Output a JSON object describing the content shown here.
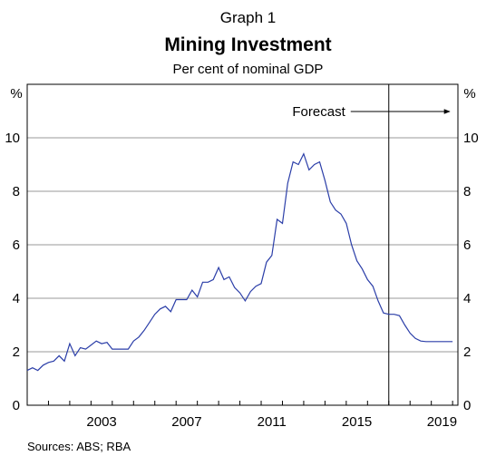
{
  "header": {
    "graph_number": "Graph 1",
    "title": "Mining Investment",
    "subtitle": "Per cent of nominal GDP"
  },
  "footer": {
    "sources": "Sources:   ABS; RBA"
  },
  "colors": {
    "line": "#2b3ea8",
    "grid": "#9a9a9a",
    "axis": "#000000"
  },
  "chart_data": {
    "type": "line",
    "title": "Mining Investment",
    "subtitle": "Per cent of nominal GDP",
    "y_unit_left": "%",
    "y_unit_right": "%",
    "ylim": [
      0,
      12
    ],
    "yticks": [
      0,
      2,
      4,
      6,
      8,
      10
    ],
    "xlim": [
      2000.0,
      2020.25
    ],
    "xticks": [
      2003,
      2007,
      2011,
      2015,
      2019
    ],
    "grid": "horizontal",
    "annotation": {
      "label": "Forecast",
      "x": 2017.0,
      "arrow": "right"
    },
    "series": [
      {
        "x": [
          2000.0,
          2000.25,
          2000.5,
          2000.75,
          2001.0,
          2001.25,
          2001.5,
          2001.75,
          2002.0,
          2002.25,
          2002.5,
          2002.75,
          2003.0,
          2003.25,
          2003.5,
          2003.75,
          2004.0,
          2004.25,
          2004.5,
          2004.75,
          2005.0,
          2005.25,
          2005.5,
          2005.75,
          2006.0,
          2006.25,
          2006.5,
          2006.75,
          2007.0,
          2007.25,
          2007.5,
          2007.75,
          2008.0,
          2008.25,
          2008.5,
          2008.75,
          2009.0,
          2009.25,
          2009.5,
          2009.75,
          2010.0,
          2010.25,
          2010.5,
          2010.75,
          2011.0,
          2011.25,
          2011.5,
          2011.75,
          2012.0,
          2012.25,
          2012.5,
          2012.75,
          2013.0,
          2013.25,
          2013.5,
          2013.75,
          2014.0,
          2014.25,
          2014.5,
          2014.75,
          2015.0,
          2015.25,
          2015.5,
          2015.75,
          2016.0,
          2016.25,
          2016.5,
          2016.75,
          2017.0,
          2017.25,
          2017.5,
          2017.75,
          2018.0,
          2018.25,
          2018.5,
          2018.75,
          2019.0,
          2019.25,
          2019.5,
          2019.75,
          2020.0
        ],
        "values": [
          1.3,
          1.4,
          1.3,
          1.5,
          1.6,
          1.65,
          1.85,
          1.65,
          2.3,
          1.85,
          2.15,
          2.1,
          2.25,
          2.4,
          2.3,
          2.35,
          2.1,
          2.1,
          2.1,
          2.1,
          2.4,
          2.55,
          2.8,
          3.1,
          3.4,
          3.6,
          3.7,
          3.5,
          3.95,
          3.95,
          3.95,
          4.3,
          4.05,
          4.6,
          4.6,
          4.7,
          5.15,
          4.7,
          4.8,
          4.4,
          4.2,
          3.9,
          4.25,
          4.45,
          4.55,
          5.35,
          5.6,
          6.95,
          6.8,
          8.3,
          9.1,
          9.0,
          9.4,
          8.8,
          9.0,
          9.1,
          8.4,
          7.6,
          7.3,
          7.15,
          6.8,
          6.0,
          5.4,
          5.1,
          4.7,
          4.45,
          3.9,
          3.45,
          3.4,
          3.4,
          3.35,
          3.0,
          2.7,
          2.5,
          2.4,
          2.38,
          2.38,
          2.38,
          2.38,
          2.38,
          2.38
        ]
      }
    ]
  }
}
